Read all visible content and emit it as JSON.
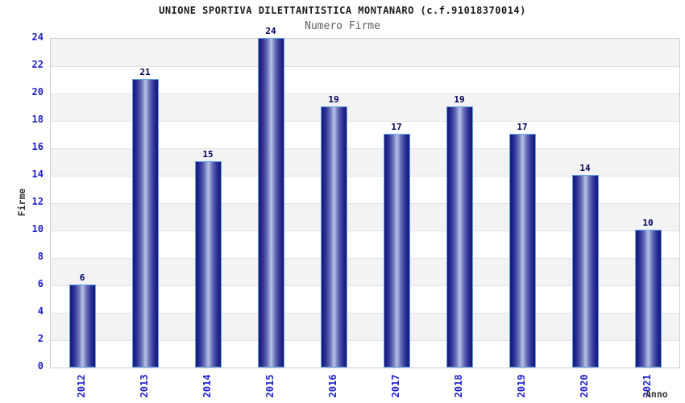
{
  "chart_data": {
    "type": "bar",
    "title": "UNIONE SPORTIVA DILETTANTISTICA MONTANARO (c.f.91018370014)",
    "subtitle": "Numero Firme",
    "categories": [
      "2012",
      "2013",
      "2014",
      "2015",
      "2016",
      "2017",
      "2018",
      "2019",
      "2020",
      "2021"
    ],
    "values": [
      6,
      21,
      15,
      24,
      19,
      17,
      19,
      17,
      14,
      10
    ],
    "xlabel": "Anno",
    "ylabel": "Firme",
    "ylim": [
      0,
      24
    ],
    "ytick_step": 2,
    "grid": "horizontal gridlines every 2 units with alternating gray/white bands",
    "legend": "none",
    "colors": {
      "bar_edge_dark": "#191975",
      "bar_center_light": "#b9c2e8",
      "bar_border": "#63a4e8",
      "tick_label_blue": "#2020cc",
      "value_label_navy": "#00005a",
      "band_gray": "#f3f3f3",
      "gridline": "#e2e2e2",
      "plot_border": "#cccccc",
      "title_color": "#1a1a1a",
      "subtitle_color": "#5f5f5f",
      "axis_title_color": "#333333"
    }
  }
}
